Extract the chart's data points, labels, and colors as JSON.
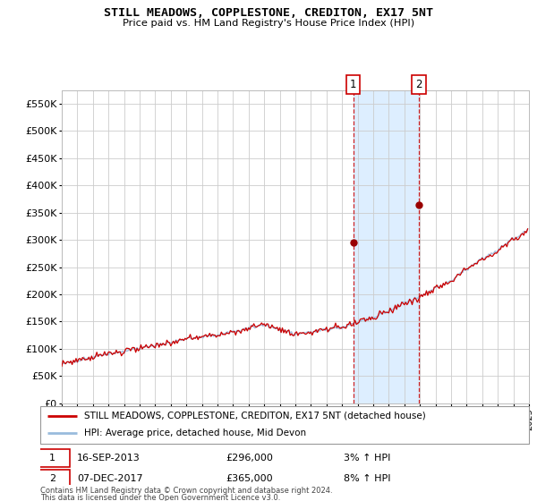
{
  "title": "STILL MEADOWS, COPPLESTONE, CREDITON, EX17 5NT",
  "subtitle": "Price paid vs. HM Land Registry's House Price Index (HPI)",
  "ylim": [
    0,
    575000
  ],
  "yticks": [
    0,
    50000,
    100000,
    150000,
    200000,
    250000,
    300000,
    350000,
    400000,
    450000,
    500000,
    550000
  ],
  "background_color": "#ffffff",
  "grid_color": "#cccccc",
  "sale1_x": 2013.71,
  "sale1_price": 296000,
  "sale2_x": 2017.92,
  "sale2_price": 365000,
  "sale1_date_str": "16-SEP-2013",
  "sale2_date_str": "07-DEC-2017",
  "sale1_price_str": "£296,000",
  "sale2_price_str": "£365,000",
  "sale1_hpi_str": "3% ↑ HPI",
  "sale2_hpi_str": "8% ↑ HPI",
  "hpi_line_color": "#99bbdd",
  "price_line_color": "#cc0000",
  "sale_marker_color": "#990000",
  "legend_line1": "STILL MEADOWS, COPPLESTONE, CREDITON, EX17 5NT (detached house)",
  "legend_line2": "HPI: Average price, detached house, Mid Devon",
  "footnote1": "Contains HM Land Registry data © Crown copyright and database right 2024.",
  "footnote2": "This data is licensed under the Open Government Licence v3.0.",
  "xstart": 1995,
  "xend": 2025,
  "highlight_color": "#ddeeff"
}
